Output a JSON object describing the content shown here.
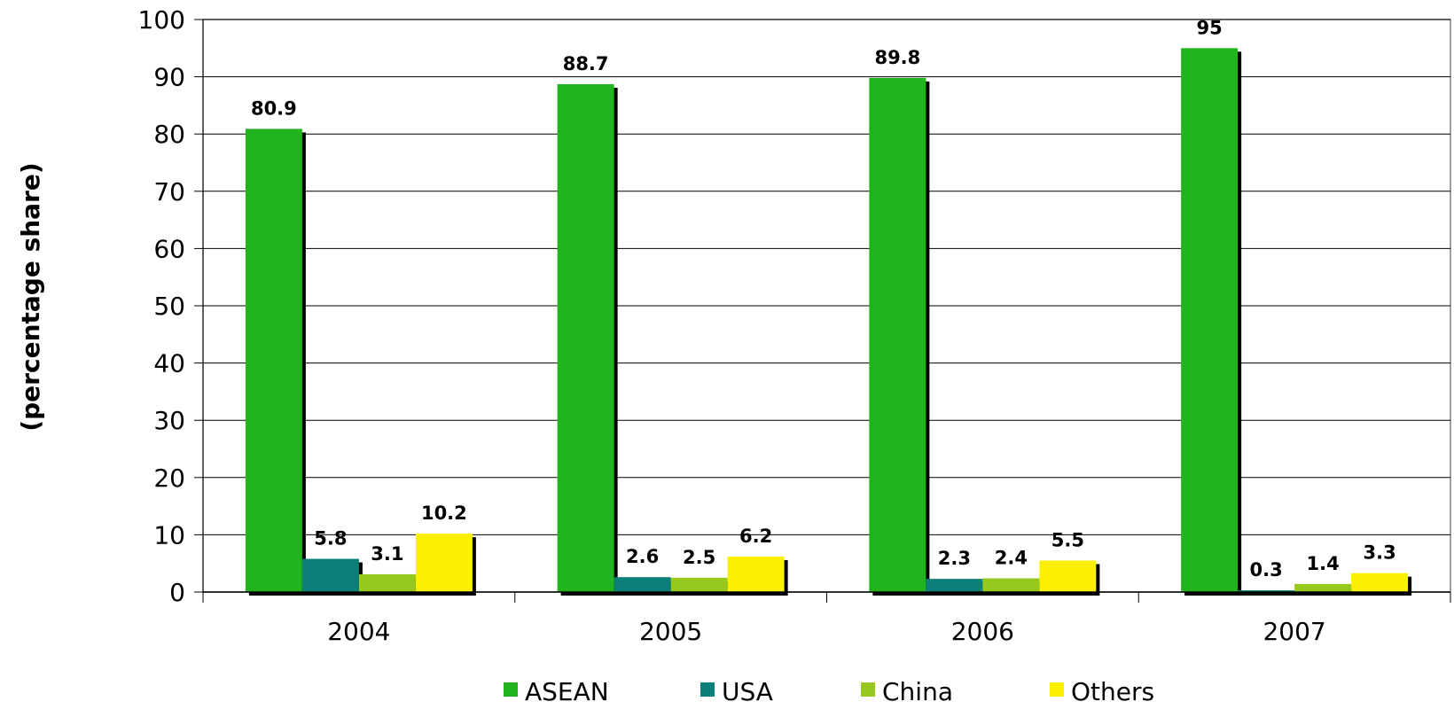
{
  "chart_data": {
    "type": "bar",
    "categories": [
      "2004",
      "2005",
      "2006",
      "2007"
    ],
    "series": [
      {
        "name": "ASEAN",
        "values": [
          80.9,
          88.7,
          89.8,
          95
        ],
        "color": "#22b41e"
      },
      {
        "name": "USA",
        "values": [
          5.8,
          2.6,
          2.3,
          0.3
        ],
        "color": "#0b8078"
      },
      {
        "name": "China",
        "values": [
          3.1,
          2.5,
          2.4,
          1.4
        ],
        "color": "#96c81e"
      },
      {
        "name": "Others",
        "values": [
          10.2,
          6.2,
          5.5,
          3.3
        ],
        "color": "#fbf000"
      }
    ],
    "data_labels": [
      [
        "80.9",
        "88.7",
        "89.8",
        "95"
      ],
      [
        "5.8",
        "2.6",
        "2.3",
        "0.3"
      ],
      [
        "3.1",
        "2.5",
        "2.4",
        "1.4"
      ],
      [
        "10.2",
        "6.2",
        "5.5",
        "3.3"
      ]
    ],
    "title": "",
    "xlabel": "",
    "ylabel": "(percentage share)",
    "ylim": [
      0,
      100
    ],
    "yticks": [
      "0",
      "10",
      "20",
      "30",
      "40",
      "50",
      "60",
      "70",
      "80",
      "90",
      "100"
    ],
    "grid": true,
    "legend_position": "bottom"
  }
}
